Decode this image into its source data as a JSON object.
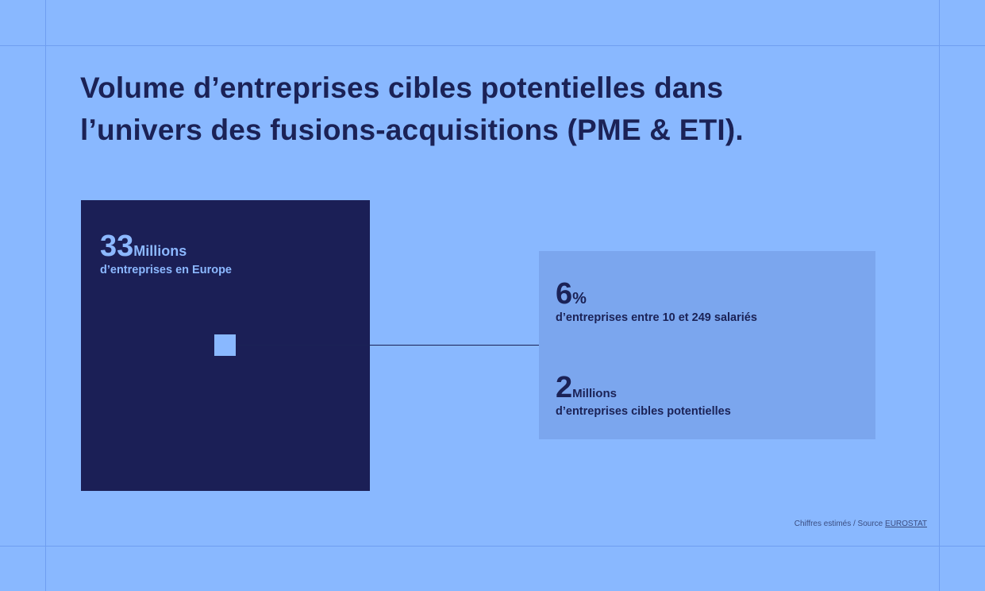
{
  "title": {
    "line1": "Volume d’entreprises cibles potentielles dans",
    "line2": "l’univers des fusions-acquisitions (PME & ETI)."
  },
  "europe": {
    "number": "33",
    "unit": "Millions",
    "description": "d’entreprises en Europe"
  },
  "share": {
    "number": "6",
    "unit": "%",
    "description": "d’entreprises entre 10 et 249 salariés"
  },
  "targets": {
    "number": "2",
    "unit": "Millions",
    "description": "d’entreprises cibles potentielles"
  },
  "source": {
    "text": "Chiffres estimés / Source ",
    "link": "EUROSTAT"
  },
  "colors": {
    "background": "#89b8ff",
    "dark_navy": "#1b1f56",
    "panel": "#7ba6ee",
    "light_accent": "#8cb8ff"
  }
}
